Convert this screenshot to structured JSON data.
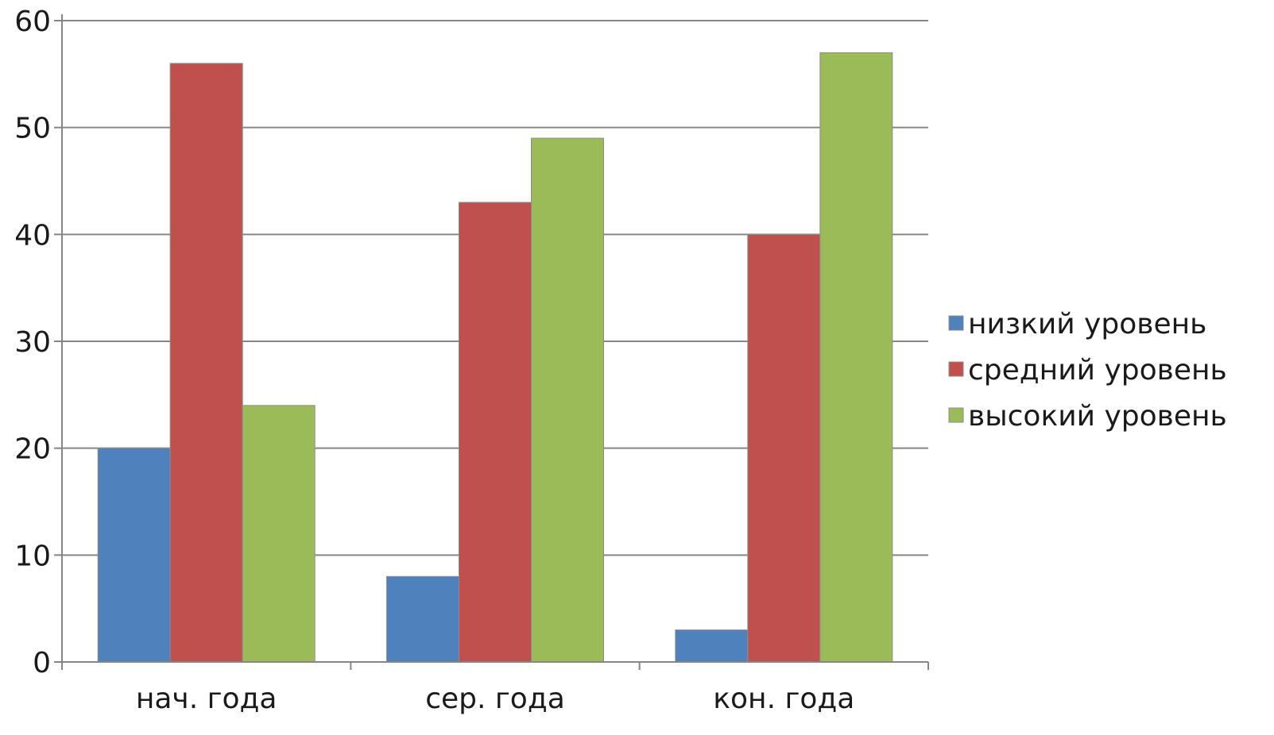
{
  "chart_data": {
    "type": "bar",
    "categories": [
      "нач. года",
      "сер. года",
      "кон. года"
    ],
    "series": [
      {
        "name": "низкий уровень",
        "values": [
          20,
          8,
          3
        ],
        "color": "#4f81bd"
      },
      {
        "name": "средний уровень",
        "values": [
          56,
          43,
          40
        ],
        "color": "#c0504d"
      },
      {
        "name": "высокий уровень",
        "values": [
          24,
          49,
          57
        ],
        "color": "#9bbb59"
      }
    ],
    "ylim": [
      0,
      60
    ],
    "yticks": [
      0,
      10,
      20,
      30,
      40,
      50,
      60
    ],
    "grid": true,
    "legend_position": "right",
    "colors": {
      "grid": "#868686",
      "axis": "#868686",
      "bar_edge": "#8c8c8c"
    }
  }
}
